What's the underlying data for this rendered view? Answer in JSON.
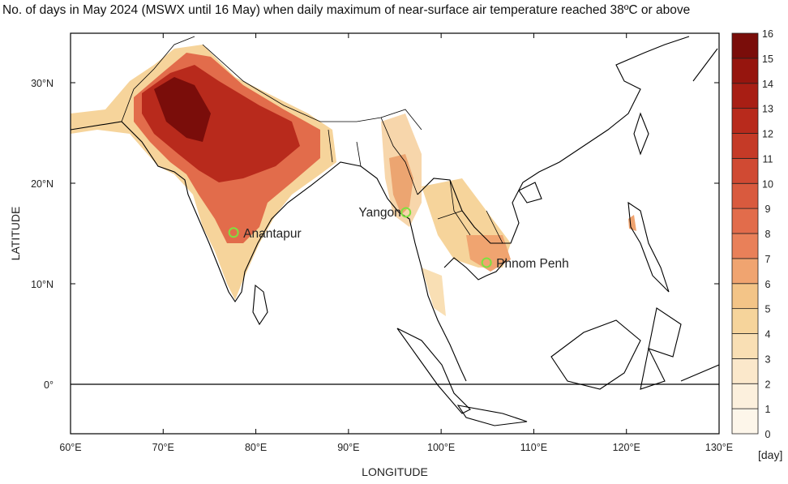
{
  "title": "No. of days in May 2024 (MSWX until 16 May) when daily maximum of near-surface air temperature reached 38ºC or above",
  "axes": {
    "xlabel": "LONGITUDE",
    "ylabel": "LATITUDE",
    "xticks": [
      "60°E",
      "70°E",
      "80°E",
      "90°E",
      "100°E",
      "110°E",
      "120°E",
      "130°E"
    ],
    "xtick_values": [
      60,
      70,
      80,
      90,
      100,
      110,
      120,
      130
    ],
    "yticks": [
      "0°",
      "10°N",
      "20°N",
      "30°N"
    ],
    "ytick_values": [
      0,
      10,
      20,
      30
    ],
    "lon_range": [
      60,
      130
    ],
    "lat_range": [
      -5,
      35.4
    ]
  },
  "locations": [
    {
      "name": "Anantapur",
      "lon": 77.6,
      "lat": 15.1
    },
    {
      "name": "Yangon",
      "lon": 96.2,
      "lat": 17.1
    },
    {
      "name": "Phnom Penh",
      "lon": 104.9,
      "lat": 12.1
    }
  ],
  "colorbar": {
    "unit": "[day]",
    "ticks": [
      "0",
      "1",
      "2",
      "3",
      "4",
      "5",
      "6",
      "7",
      "8",
      "9",
      "10",
      "11",
      "12",
      "13",
      "14",
      "15",
      "16"
    ],
    "colors": [
      "#fdf6ea",
      "#fcf0dd",
      "#fbe8cb",
      "#f9dfb4",
      "#f6d49b",
      "#f3c487",
      "#f0a470",
      "#e98059",
      "#e26c4b",
      "#d95a3e",
      "#d04a33",
      "#c53a27",
      "#b82a1c",
      "#a81e14",
      "#96150e",
      "#7a0d0a"
    ]
  },
  "marker_color": "#7fe040"
}
